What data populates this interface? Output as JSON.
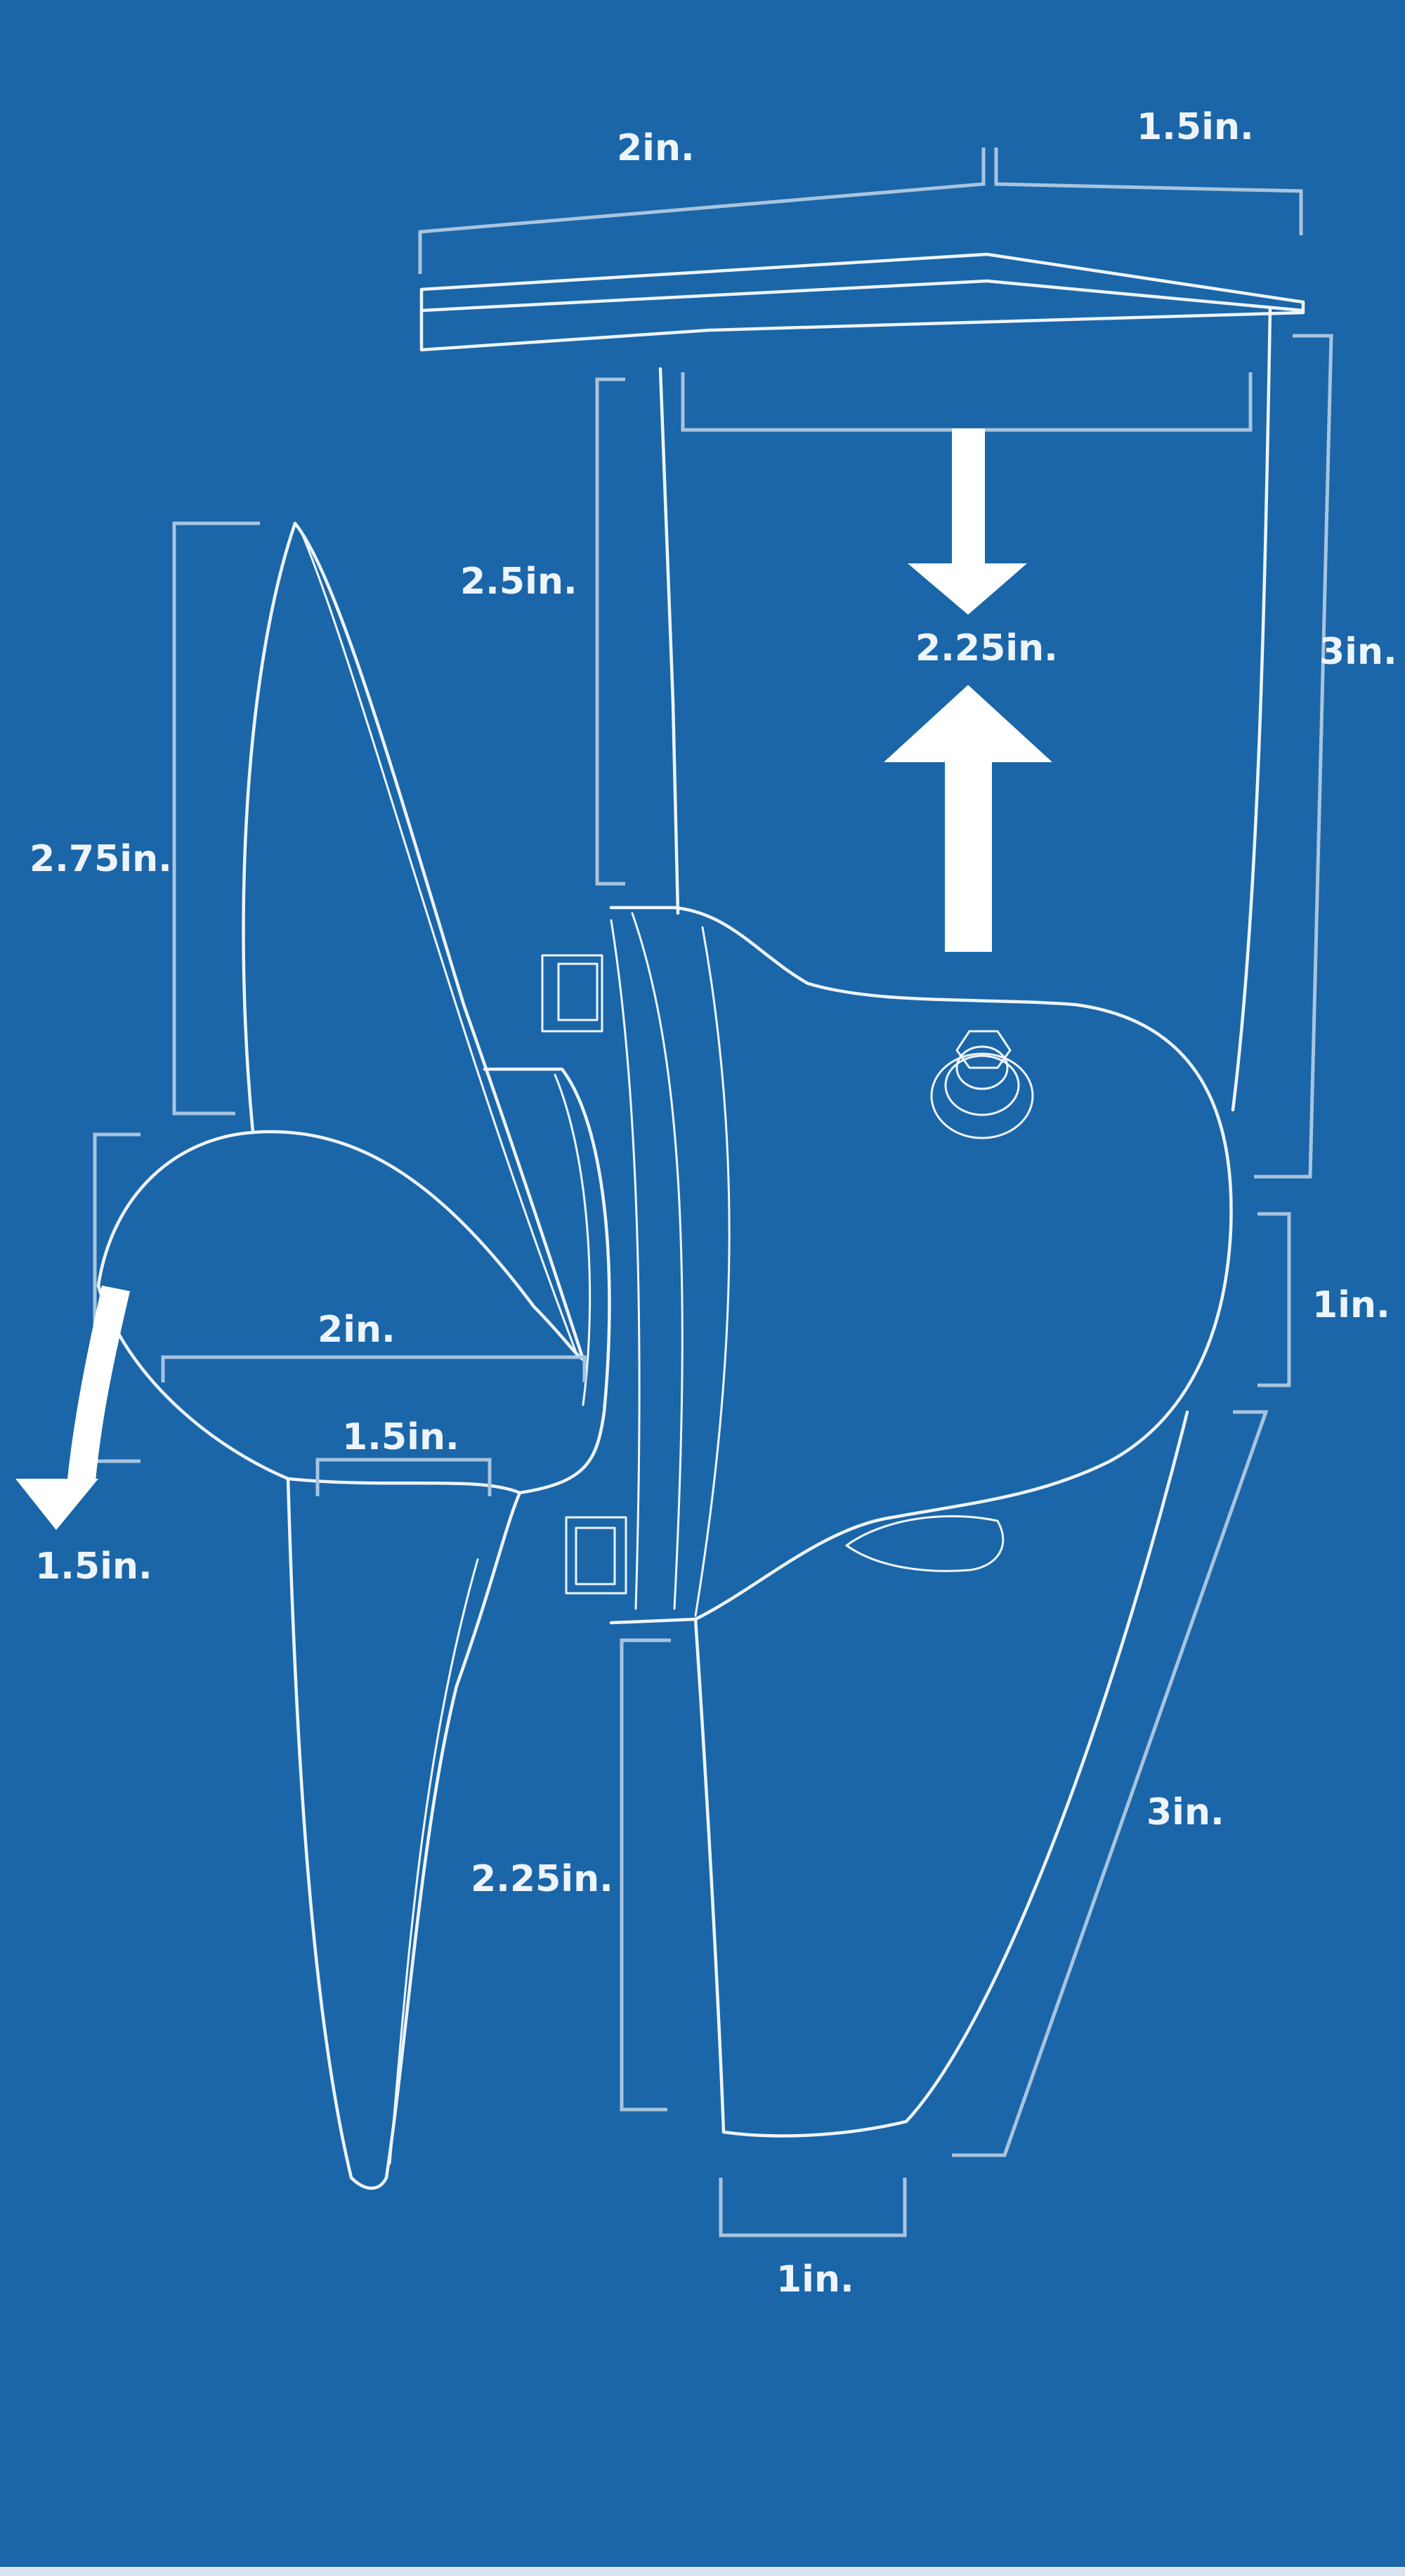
{
  "diagram": {
    "colors": {
      "background": "#1a66a8",
      "line": "#eef4fb",
      "dimension": "#a9c4df"
    },
    "labels": {
      "top_left_width": "2in.",
      "top_right_width": "1.5in.",
      "shaft_left_height": "2.5in.",
      "gap_height": "2.25in.",
      "right_upper_height": "3in.",
      "blade_upper_height": "2.75in.",
      "hub_height": "1in.",
      "blade_middle_width": "2in.",
      "blade_lower_width": "1.5in.",
      "blade_tip_arrow": "1.5in.",
      "skeg_height": "2.25in.",
      "right_lower_height": "3in.",
      "bottom_width": "1in."
    }
  }
}
